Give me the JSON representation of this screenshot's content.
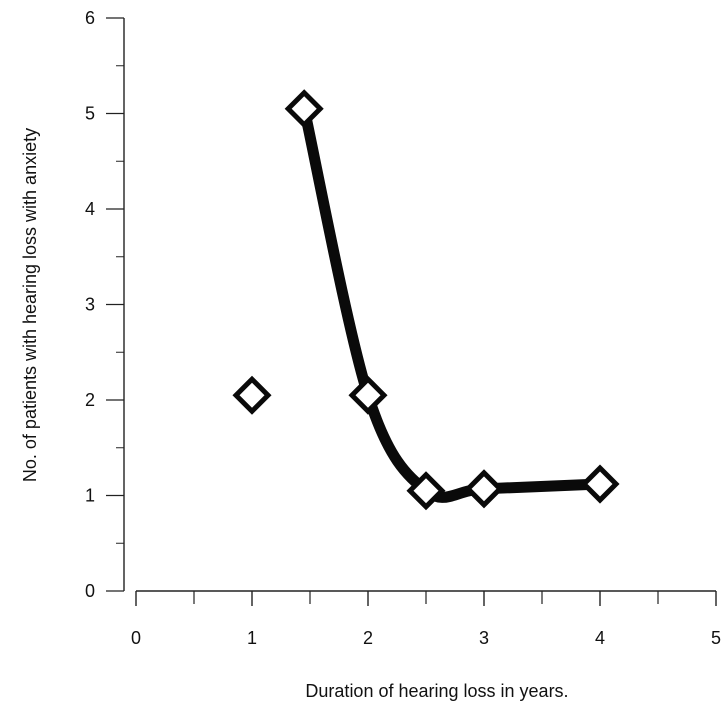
{
  "chart_data": {
    "type": "scatter",
    "title": "",
    "xlabel": "Duration of hearing loss in years.",
    "ylabel": "No. of patients with hearing loss with anxiety",
    "xlim": [
      0,
      5
    ],
    "ylim": [
      0,
      6
    ],
    "x_ticks": [
      0,
      1,
      2,
      3,
      4,
      5
    ],
    "y_ticks": [
      0,
      1,
      2,
      3,
      4,
      5,
      6
    ],
    "grid": false,
    "legend": "none",
    "series": [
      {
        "marker": "open-diamond",
        "points": [
          {
            "x": 1.0,
            "y": 2.05
          },
          {
            "x": 1.45,
            "y": 5.05
          },
          {
            "x": 2.0,
            "y": 2.05
          },
          {
            "x": 2.5,
            "y": 1.05
          },
          {
            "x": 3.0,
            "y": 1.07
          },
          {
            "x": 4.0,
            "y": 1.12
          }
        ]
      }
    ],
    "trend_line": {
      "style": "thick-smooth",
      "points": [
        {
          "x": 1.45,
          "y": 5.05
        },
        {
          "x": 2.0,
          "y": 2.05
        },
        {
          "x": 2.5,
          "y": 1.05
        },
        {
          "x": 3.0,
          "y": 1.07
        },
        {
          "x": 4.0,
          "y": 1.12
        }
      ]
    }
  }
}
